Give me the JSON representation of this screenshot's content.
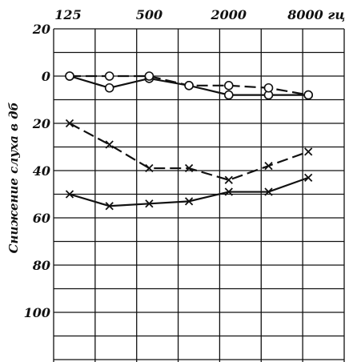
{
  "chart_data": {
    "type": "line",
    "title": "",
    "ylabel": "Снижение слуха в дб",
    "xlabel": "",
    "x": [
      125,
      250,
      500,
      1000,
      2000,
      4000,
      8000
    ],
    "x_tick_labels": [
      "125",
      "500",
      "2000",
      "8000 гц"
    ],
    "x_scale": "log",
    "y_tick_labels": [
      "20",
      "0",
      "20",
      "40",
      "60",
      "80",
      "100"
    ],
    "y_tick_values": [
      -20,
      0,
      20,
      40,
      60,
      80,
      100
    ],
    "ylim": [
      -20,
      120
    ],
    "y_inverted": true,
    "grid": true,
    "legend": "none",
    "series": [
      {
        "marker": "circle",
        "dash": "solid",
        "values": [
          0,
          5,
          1,
          4,
          8,
          8,
          8
        ]
      },
      {
        "marker": "circle",
        "dash": "dashed",
        "values": [
          0,
          0,
          0,
          4,
          4,
          5,
          8
        ]
      },
      {
        "marker": "cross",
        "dash": "dashed",
        "values": [
          20,
          29,
          39,
          39,
          44,
          38,
          32
        ]
      },
      {
        "marker": "cross",
        "dash": "solid",
        "values": [
          50,
          55,
          54,
          53,
          49,
          49,
          43
        ]
      }
    ]
  }
}
